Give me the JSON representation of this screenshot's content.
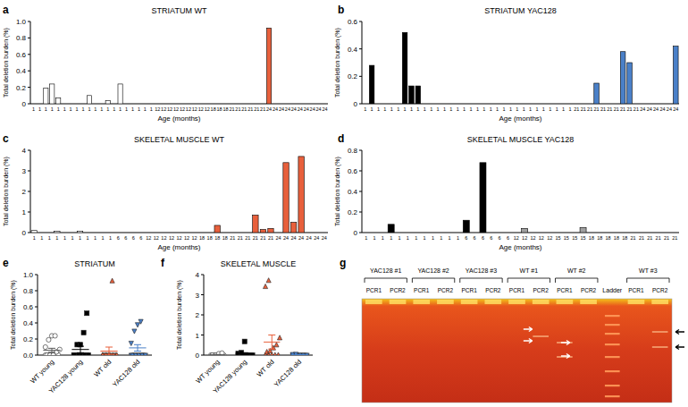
{
  "chart_data": [
    {
      "type": "bar",
      "panel_label": "a",
      "title": "STRIATUM WT",
      "x_label": "Age (months)",
      "y_label": "Total deletion burden (%)",
      "categories": [
        "1",
        "1",
        "1",
        "1",
        "1",
        "1",
        "1",
        "1",
        "1",
        "1",
        "1",
        "1",
        "1",
        "1",
        "1",
        "1",
        "1",
        "1",
        "1",
        "1",
        "12",
        "12",
        "12",
        "12",
        "12",
        "12",
        "12",
        "12",
        "12",
        "18",
        "18",
        "18",
        "21",
        "21",
        "21",
        "21",
        "21",
        "21",
        "24",
        "24",
        "24",
        "24",
        "24",
        "24",
        "24",
        "24",
        "24",
        "24"
      ],
      "values": [
        0,
        0,
        0.19,
        0.24,
        0.07,
        0,
        0,
        0,
        0,
        0.1,
        0,
        0,
        0.04,
        0,
        0.24,
        0,
        0,
        0,
        0,
        0,
        0,
        0,
        0,
        0,
        0,
        0,
        0,
        0,
        0,
        0,
        0,
        0,
        0,
        0,
        0,
        0,
        0,
        0,
        0.92,
        0,
        0,
        0,
        0,
        0,
        0,
        0,
        0,
        0
      ],
      "colors": [
        "#ffffff",
        "#ffffff",
        "#ffffff",
        "#ffffff",
        "#ffffff",
        "#ffffff",
        "#ffffff",
        "#ffffff",
        "#ffffff",
        "#ffffff",
        "#ffffff",
        "#ffffff",
        "#ffffff",
        "#ffffff",
        "#ffffff",
        "#ffffff",
        "#ffffff",
        "#ffffff",
        "#ffffff",
        "#ffffff",
        "#e8603c",
        "#e8603c",
        "#e8603c",
        "#e8603c",
        "#e8603c",
        "#e8603c",
        "#e8603c",
        "#e8603c",
        "#e8603c",
        "#e8603c",
        "#e8603c",
        "#e8603c",
        "#e8603c",
        "#e8603c",
        "#e8603c",
        "#e8603c",
        "#e8603c",
        "#e8603c",
        "#e8603c",
        "#e8603c",
        "#e8603c",
        "#e8603c",
        "#e8603c",
        "#e8603c",
        "#e8603c",
        "#e8603c",
        "#e8603c",
        "#e8603c"
      ],
      "ylim": [
        0,
        1
      ],
      "yticks": [
        0,
        0.2,
        0.4,
        0.6,
        0.8,
        {
          "value": 1,
          "label": "1.0"
        }
      ]
    },
    {
      "type": "bar",
      "panel_label": "b",
      "title": "STRIATUM  YAC128",
      "x_label": "Age (months)",
      "y_label": "Total deletion burden (%)",
      "categories": [
        "1",
        "1",
        "1",
        "1",
        "1",
        "1",
        "1",
        "1",
        "1",
        "1",
        "1",
        "1",
        "1",
        "1",
        "1",
        "1",
        "1",
        "1",
        "1",
        "1",
        "1",
        "1",
        "1",
        "1",
        "1",
        "1",
        "1",
        "1",
        "1",
        "1",
        "1",
        "1",
        "21",
        "21",
        "21",
        "21",
        "21",
        "21",
        "21",
        "21",
        "21",
        "21",
        "24",
        "24",
        "24",
        "24",
        "24",
        "24"
      ],
      "values": [
        0,
        0.28,
        0,
        0,
        0,
        0,
        0.52,
        0.13,
        0.13,
        0,
        0,
        0,
        0,
        0,
        0,
        0,
        0,
        0,
        0,
        0,
        0,
        0,
        0,
        0,
        0,
        0,
        0,
        0,
        0,
        0,
        0,
        0,
        0,
        0,
        0,
        0.15,
        0,
        0,
        0,
        0.38,
        0.3,
        0,
        0,
        0,
        0,
        0,
        0,
        0.42
      ],
      "colors": [
        "#000000",
        "#000000",
        "#000000",
        "#000000",
        "#000000",
        "#000000",
        "#000000",
        "#000000",
        "#000000",
        "#000000",
        "#000000",
        "#000000",
        "#000000",
        "#000000",
        "#000000",
        "#000000",
        "#000000",
        "#000000",
        "#000000",
        "#000000",
        "#000000",
        "#000000",
        "#000000",
        "#000000",
        "#000000",
        "#000000",
        "#000000",
        "#000000",
        "#000000",
        "#000000",
        "#000000",
        "#000000",
        "#4a80c8",
        "#4a80c8",
        "#4a80c8",
        "#4a80c8",
        "#4a80c8",
        "#4a80c8",
        "#4a80c8",
        "#4a80c8",
        "#4a80c8",
        "#4a80c8",
        "#4a80c8",
        "#4a80c8",
        "#4a80c8",
        "#4a80c8",
        "#4a80c8",
        "#4a80c8"
      ],
      "ylim": [
        0,
        0.6
      ],
      "yticks": [
        0,
        0.2,
        0.4,
        0.6
      ]
    },
    {
      "type": "bar",
      "panel_label": "c",
      "title": "SKELETAL MUSCLE WT",
      "x_label": "Age (months)",
      "y_label": "Total deletion burden (%)",
      "categories": [
        "1",
        "1",
        "1",
        "1",
        "1",
        "1",
        "1",
        "1",
        "1",
        "1",
        "1",
        "6",
        "6",
        "6",
        "6",
        "12",
        "12",
        "12",
        "12",
        "12",
        "12",
        "12",
        "18",
        "18",
        "18",
        "18",
        "21",
        "21",
        "21",
        "21",
        "21",
        "21",
        "24",
        "24",
        "24",
        "24",
        "24",
        "24",
        "24"
      ],
      "values": [
        0.1,
        0,
        0,
        0.07,
        0,
        0,
        0.07,
        0,
        0,
        0,
        0,
        0,
        0,
        0,
        0,
        0,
        0,
        0,
        0,
        0,
        0,
        0,
        0,
        0,
        0.35,
        0,
        0,
        0,
        0,
        0.85,
        0.15,
        0.2,
        0,
        3.4,
        0.5,
        3.7,
        0,
        0,
        0
      ],
      "colors": [
        "#ffffff",
        "#ffffff",
        "#ffffff",
        "#ffffff",
        "#ffffff",
        "#ffffff",
        "#ffffff",
        "#ffffff",
        "#ffffff",
        "#ffffff",
        "#ffffff",
        "#ffffff",
        "#ffffff",
        "#ffffff",
        "#ffffff",
        "#e8603c",
        "#e8603c",
        "#e8603c",
        "#e8603c",
        "#e8603c",
        "#e8603c",
        "#e8603c",
        "#e8603c",
        "#e8603c",
        "#e8603c",
        "#e8603c",
        "#e8603c",
        "#e8603c",
        "#e8603c",
        "#e8603c",
        "#e8603c",
        "#e8603c",
        "#e8603c",
        "#e8603c",
        "#e8603c",
        "#e8603c",
        "#e8603c",
        "#e8603c",
        "#e8603c"
      ],
      "ylim": [
        0,
        4
      ],
      "yticks": [
        0,
        1,
        2,
        3,
        4
      ]
    },
    {
      "type": "bar",
      "panel_label": "d",
      "title": "SKELETAL MUSCLE YAC128",
      "x_label": "Age (months)",
      "y_label": "Total deletion burden (%)",
      "categories": [
        "1",
        "1",
        "1",
        "1",
        "1",
        "1",
        "1",
        "1",
        "1",
        "1",
        "1",
        "1",
        "6",
        "6",
        "6",
        "6",
        "6",
        "6",
        "12",
        "12",
        "12",
        "12",
        "12",
        "15",
        "15",
        "15",
        "15",
        "18",
        "18",
        "18",
        "18",
        "18",
        "21",
        "21",
        "21",
        "21",
        "21",
        "21"
      ],
      "values": [
        0,
        0,
        0,
        0.08,
        0,
        0,
        0,
        0,
        0,
        0,
        0,
        0,
        0.12,
        0,
        0.68,
        0,
        0,
        0,
        0,
        0.04,
        0,
        0,
        0,
        0,
        0,
        0,
        0.05,
        0,
        0,
        0,
        0,
        0,
        0,
        0,
        0,
        0,
        0,
        0
      ],
      "colors": [
        "#000000",
        "#000000",
        "#000000",
        "#000000",
        "#000000",
        "#000000",
        "#000000",
        "#000000",
        "#000000",
        "#000000",
        "#000000",
        "#000000",
        "#000000",
        "#000000",
        "#000000",
        "#000000",
        "#000000",
        "#000000",
        "#a0a0a0",
        "#a0a0a0",
        "#a0a0a0",
        "#a0a0a0",
        "#a0a0a0",
        "#a0a0a0",
        "#a0a0a0",
        "#a0a0a0",
        "#a0a0a0",
        "#4a80c8",
        "#4a80c8",
        "#4a80c8",
        "#4a80c8",
        "#4a80c8",
        "#4a80c8",
        "#4a80c8",
        "#4a80c8",
        "#4a80c8",
        "#4a80c8",
        "#4a80c8"
      ],
      "ylim": [
        0,
        0.8
      ],
      "yticks": [
        0,
        0.2,
        0.4,
        0.6,
        0.8
      ]
    },
    {
      "type": "dot",
      "panel_label": "e",
      "title": "STRIATUM",
      "y_label": "Total deletion burden (%)",
      "ylim": [
        0,
        1
      ],
      "yticks": [
        {
          "value": 0,
          "label": "0.0"
        },
        0.2,
        0.4,
        0.6,
        0.8,
        {
          "value": 1,
          "label": "1.0"
        }
      ],
      "groups": [
        {
          "label": "WT young",
          "color": "#ffffff",
          "marker": "circle",
          "values": [
            0,
            0,
            0,
            0,
            0,
            0,
            0,
            0,
            0.04,
            0.07,
            0.1,
            0.19,
            0.24,
            0.24
          ],
          "mean": 0.06,
          "sem": 0.025
        },
        {
          "label": "YAC128 young",
          "color": "#000000",
          "marker": "square",
          "values": [
            0,
            0,
            0,
            0,
            0,
            0,
            0,
            0,
            0,
            0,
            0,
            0.13,
            0.13,
            0.28,
            0.52
          ],
          "mean": 0.07,
          "sem": 0.04
        },
        {
          "label": "WT old",
          "color": "#e8603c",
          "marker": "triangle",
          "values": [
            0,
            0,
            0,
            0,
            0,
            0,
            0,
            0,
            0,
            0,
            0,
            0,
            0,
            0.92
          ],
          "mean": 0.05,
          "sem": 0.05
        },
        {
          "label": "YAC128 old",
          "color": "#4a80c8",
          "marker": "triangle-down",
          "values": [
            0,
            0,
            0,
            0,
            0,
            0,
            0,
            0,
            0,
            0,
            0.15,
            0.3,
            0.38,
            0.42
          ],
          "mean": 0.09,
          "sem": 0.04
        }
      ]
    },
    {
      "type": "dot",
      "panel_label": "f",
      "title": "SKELETAL MUSCLE",
      "y_label": "Total deletion burden (%)",
      "ylim": [
        0,
        4
      ],
      "yticks": [
        0,
        1,
        2,
        3,
        4
      ],
      "groups": [
        {
          "label": "WT young",
          "color": "#ffffff",
          "marker": "circle",
          "values": [
            0,
            0,
            0,
            0,
            0,
            0,
            0,
            0.07,
            0.1
          ],
          "mean": 0.02,
          "sem": 0.01
        },
        {
          "label": "YAC128 young",
          "color": "#000000",
          "marker": "square",
          "values": [
            0,
            0,
            0,
            0,
            0,
            0,
            0,
            0,
            0,
            0,
            0.08,
            0.12,
            0.68
          ],
          "mean": 0.07,
          "sem": 0.05
        },
        {
          "label": "WT old",
          "color": "#e8603c",
          "marker": "triangle",
          "values": [
            0,
            0,
            0,
            0,
            0,
            0.15,
            0.2,
            0.35,
            0.5,
            0.85,
            3.4,
            3.7
          ],
          "mean": 0.65,
          "sem": 0.35
        },
        {
          "label": "YAC128 old",
          "color": "#4a80c8",
          "marker": "triangle-down",
          "values": [
            0,
            0,
            0,
            0,
            0,
            0,
            0,
            0,
            0,
            0,
            0.04,
            0.05
          ],
          "mean": 0.01,
          "sem": 0.005
        }
      ]
    }
  ],
  "gel": {
    "panel_label": "g",
    "groups": [
      {
        "label": "YAC128 #1",
        "lanes": [
          "PCR1",
          "PCR2"
        ]
      },
      {
        "label": "YAC128 #2",
        "lanes": [
          "PCR1",
          "PCR2"
        ]
      },
      {
        "label": "YAC128 #3",
        "lanes": [
          "PCR1",
          "PCR2"
        ]
      },
      {
        "label": "WT #1",
        "lanes": [
          "PCR1",
          "PCR2"
        ]
      },
      {
        "label": "WT #2",
        "lanes": [
          "PCR1",
          "PCR2"
        ]
      },
      {
        "label": "Ladder",
        "lanes": []
      },
      {
        "label": "WT #3",
        "lanes": [
          "PCR1",
          "PCR2"
        ]
      }
    ]
  }
}
